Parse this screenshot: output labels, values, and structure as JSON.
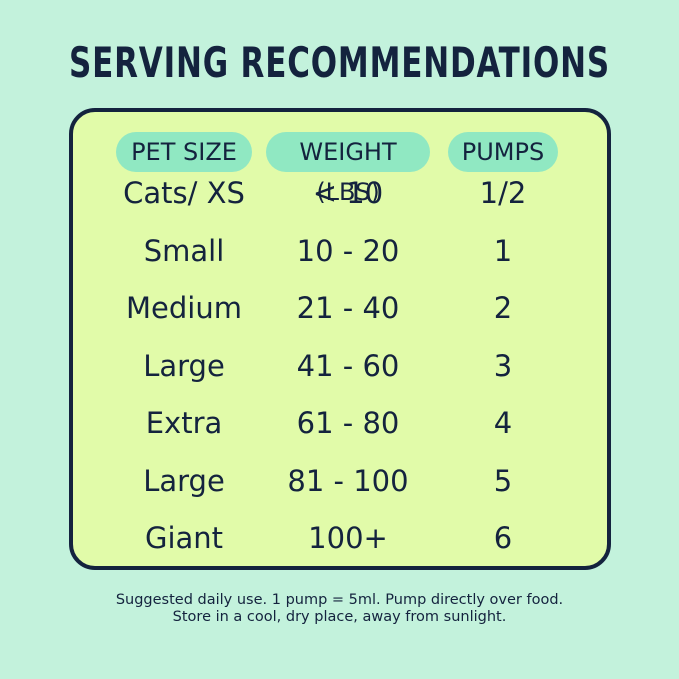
{
  "header": {
    "title": "SERVING RECOMMENDATIONS"
  },
  "table": {
    "columns": [
      "PET SIZE",
      "WEIGHT (LBS)",
      "PUMPS"
    ],
    "rows": [
      [
        "Cats/ XS",
        "< 10",
        "1/2"
      ],
      [
        "Small",
        "10 - 20",
        "1"
      ],
      [
        "Medium",
        "21 - 40",
        "2"
      ],
      [
        "Large",
        "41 - 60",
        "3"
      ],
      [
        "Extra",
        "61 - 80",
        "4"
      ],
      [
        "Large",
        "81 - 100",
        "5"
      ],
      [
        "Giant",
        "100+",
        "6"
      ]
    ]
  },
  "footer": {
    "lines": [
      "Suggested daily use. 1 pump = 5ml. Pump directly over food.",
      "Store in a cool, dry place, away from sunlight."
    ]
  }
}
